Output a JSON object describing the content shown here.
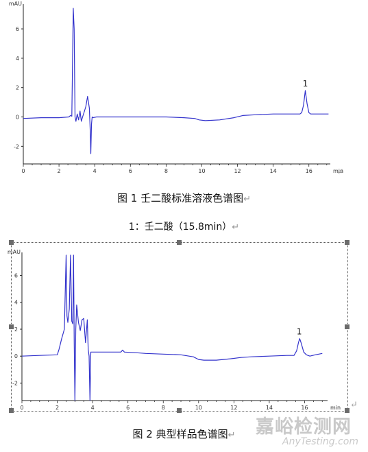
{
  "chart_data": [
    {
      "type": "line",
      "ylabel": "mAU",
      "xlabel": "min",
      "xlim": [
        0,
        17.2
      ],
      "ylim": [
        -3.2,
        7.5
      ],
      "xticks": [
        0,
        2,
        4,
        6,
        8,
        10,
        12,
        14,
        16
      ],
      "yticks": [
        -2,
        0,
        2,
        4,
        6
      ],
      "annotation": "1",
      "annotation_x": 15.8,
      "annotation_y": 1.9,
      "color": "#3333cc",
      "series": [
        {
          "x": [
            0,
            1.0,
            2.0,
            2.55,
            2.65,
            2.72,
            2.8,
            2.85,
            2.9,
            2.95,
            3.02,
            3.1,
            3.18,
            3.25,
            3.32,
            3.4,
            3.5,
            3.6,
            3.7,
            3.75,
            3.78,
            3.82,
            3.86,
            3.9,
            4.1,
            5.0,
            6.0,
            7.0,
            8.0,
            9.0,
            9.6,
            9.85,
            10.2,
            11.0,
            11.8,
            12.3,
            13.0,
            14.0,
            15.0,
            15.5,
            15.6,
            15.7,
            15.8,
            15.9,
            16.0,
            16.1,
            16.3,
            16.6,
            17.1
          ],
          "y": [
            -0.1,
            -0.05,
            -0.05,
            0.0,
            0.1,
            0.05,
            7.4,
            6.0,
            0.0,
            -0.3,
            0.2,
            -0.2,
            0.4,
            -0.3,
            0.0,
            0.3,
            0.7,
            1.4,
            0.6,
            -1.0,
            -2.5,
            -0.5,
            0.0,
            -0.05,
            0.0,
            0.0,
            0.0,
            0.0,
            0.0,
            -0.05,
            -0.1,
            -0.2,
            -0.25,
            -0.2,
            -0.05,
            0.1,
            0.15,
            0.2,
            0.2,
            0.2,
            0.3,
            0.8,
            1.8,
            0.9,
            0.3,
            0.2,
            0.2,
            0.2,
            0.2
          ]
        }
      ]
    },
    {
      "type": "line",
      "ylabel": "mAU",
      "xlabel": "min",
      "xlim": [
        0,
        17.3
      ],
      "ylim": [
        -3.3,
        7.5
      ],
      "xticks": [
        0,
        2,
        4,
        6,
        8,
        10,
        12,
        14,
        16
      ],
      "yticks": [
        -2,
        0,
        2,
        4,
        6
      ],
      "annotation": "1",
      "annotation_x": 15.7,
      "annotation_y": 1.4,
      "color": "#3333cc",
      "series": [
        {
          "x": [
            0,
            1.0,
            2.0,
            2.1,
            2.25,
            2.4,
            2.5,
            2.55,
            2.6,
            2.68,
            2.75,
            2.82,
            2.88,
            2.92,
            2.96,
            3.0,
            3.05,
            3.1,
            3.2,
            3.3,
            3.4,
            3.5,
            3.6,
            3.7,
            3.75,
            3.8,
            3.85,
            3.9,
            4.0,
            5.0,
            5.6,
            5.7,
            5.8,
            6.5,
            7.0,
            8.0,
            9.0,
            9.7,
            10.0,
            10.3,
            11.0,
            11.8,
            12.4,
            13.0,
            14.0,
            15.0,
            15.4,
            15.55,
            15.65,
            15.72,
            15.8,
            15.95,
            16.1,
            16.3,
            16.6,
            17.0
          ],
          "y": [
            0.0,
            0.05,
            0.1,
            0.5,
            1.3,
            2.0,
            7.5,
            3.0,
            2.5,
            3.5,
            7.5,
            2.6,
            2.4,
            7.5,
            1.0,
            -3.3,
            2.0,
            3.8,
            2.5,
            1.9,
            2.7,
            2.8,
            1.0,
            2.7,
            0.5,
            0.0,
            -3.3,
            0.3,
            0.3,
            0.3,
            0.3,
            0.45,
            0.3,
            0.25,
            0.2,
            0.15,
            0.1,
            -0.05,
            -0.25,
            -0.3,
            -0.3,
            -0.2,
            -0.1,
            -0.05,
            0.0,
            0.05,
            0.05,
            0.4,
            1.0,
            1.3,
            1.0,
            0.3,
            0.1,
            0.0,
            0.1,
            0.2
          ]
        }
      ]
    }
  ],
  "captions": {
    "fig1": "图 1  壬二酸标准溶液色谱图",
    "peak_note": "1：壬二酸（15.8min）",
    "fig2": "图 2  典型样品色谱图"
  },
  "return_mark": "↵",
  "watermark": {
    "cn": "嘉峪检测网",
    "en": "AnyTesting.com"
  }
}
